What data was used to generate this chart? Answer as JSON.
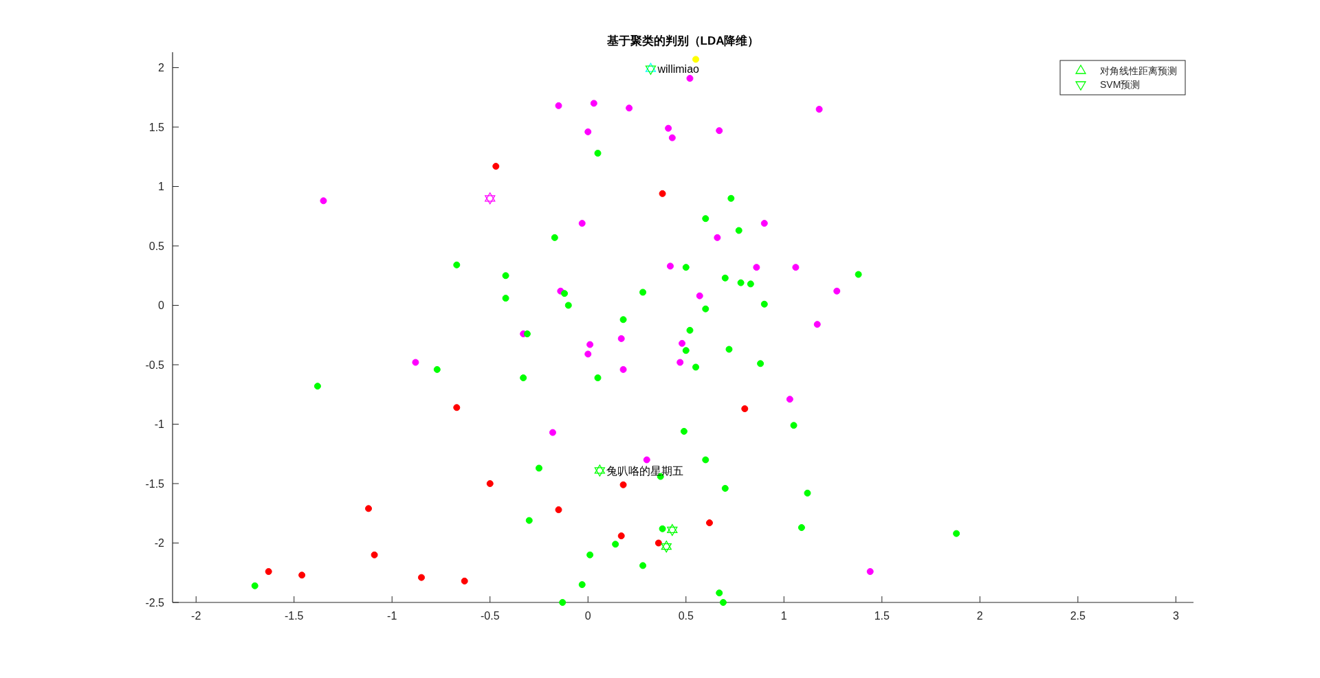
{
  "chart_data": {
    "type": "scatter",
    "title": "基于聚类的判别（LDA降维）",
    "xlim": [
      -2.12,
      3.09
    ],
    "ylim": [
      -2.5,
      2.13
    ],
    "xticks": [
      -2,
      -1.5,
      -1,
      -0.5,
      0,
      0.5,
      1,
      1.5,
      2,
      2.5,
      3
    ],
    "yticks": [
      -2.5,
      -2,
      -1.5,
      -1,
      -0.5,
      0,
      0.5,
      1,
      1.5,
      2
    ],
    "grid": false,
    "legend": "top right",
    "marker": "circle",
    "series": [
      {
        "color": "#ff00ff",
        "x": [
          -0.15,
          0.03,
          0.21,
          0.0,
          0.41,
          0.43,
          0.52,
          1.18,
          0.67,
          -1.35,
          -0.03,
          0.9,
          0.66,
          0.42,
          0.86,
          1.06,
          1.27,
          0.57,
          -0.14,
          1.17,
          -0.33,
          0.01,
          0.17,
          0.0,
          0.48,
          0.47,
          -0.88,
          0.18,
          1.03,
          -0.18,
          0.3,
          1.44
        ],
        "values": [
          1.68,
          1.7,
          1.66,
          1.46,
          1.49,
          1.41,
          1.91,
          1.65,
          1.47,
          0.88,
          0.69,
          0.69,
          0.57,
          0.33,
          0.32,
          0.32,
          0.12,
          0.08,
          0.12,
          -0.16,
          -0.24,
          -0.33,
          -0.28,
          -0.41,
          -0.32,
          -0.48,
          -0.48,
          -0.54,
          -0.79,
          -1.07,
          -1.3,
          -2.24
        ]
      },
      {
        "color": "#ff0000",
        "x": [
          -0.47,
          0.38,
          -0.67,
          0.8,
          -0.5,
          0.18,
          -1.12,
          -0.15,
          0.62,
          0.17,
          0.36,
          -1.09,
          -1.63,
          -1.46,
          -0.85,
          -0.63
        ],
        "values": [
          1.17,
          0.94,
          -0.86,
          -0.87,
          -1.5,
          -1.51,
          -1.71,
          -1.72,
          -1.83,
          -1.94,
          -2.0,
          -2.1,
          -2.24,
          -2.27,
          -2.29,
          -2.32
        ]
      },
      {
        "color": "#ffff00",
        "x": [
          0.55
        ],
        "values": [
          2.07
        ]
      },
      {
        "color": "#00ff00",
        "x": [
          0.05,
          0.73,
          0.6,
          0.77,
          -0.17,
          -0.67,
          0.5,
          -0.42,
          1.38,
          0.7,
          0.78,
          0.83,
          -0.42,
          -0.12,
          0.28,
          -0.1,
          0.9,
          0.18,
          0.6,
          0.52,
          -0.31,
          0.5,
          0.72,
          0.88,
          -0.77,
          0.55,
          -0.33,
          0.05,
          -1.38,
          1.05,
          0.49,
          0.6,
          -0.25,
          0.37,
          0.7,
          1.12,
          -0.3,
          1.09,
          0.38,
          1.88,
          0.14,
          0.01,
          0.28,
          -0.03,
          -1.7,
          0.67,
          -0.13,
          0.69
        ],
        "values": [
          1.28,
          0.9,
          0.73,
          0.63,
          0.57,
          0.34,
          0.32,
          0.25,
          0.26,
          0.23,
          0.19,
          0.18,
          0.06,
          0.1,
          0.11,
          0.0,
          0.01,
          -0.12,
          -0.03,
          -0.21,
          -0.24,
          -0.38,
          -0.37,
          -0.49,
          -0.54,
          -0.52,
          -0.61,
          -0.61,
          -0.68,
          -1.01,
          -1.06,
          -1.3,
          -1.37,
          -1.44,
          -1.54,
          -1.58,
          -1.81,
          -1.87,
          -1.88,
          -1.92,
          -2.01,
          -2.1,
          -2.19,
          -2.35,
          -2.36,
          -2.42,
          -2.5,
          -2.5
        ]
      },
      {
        "name": "对角线性距离预测",
        "marker": "triangle",
        "color": "#00ff00",
        "colors": [
          "#00ffff",
          "#ff00ff",
          "#00ff00",
          "#00ff00",
          "#00ff00"
        ],
        "x": [
          0.32,
          -0.5,
          0.06,
          0.43,
          0.4
        ],
        "values": [
          1.99,
          0.9,
          -1.39,
          -1.89,
          -2.03
        ]
      },
      {
        "name": "SVM预测",
        "marker": "triangle_down",
        "color": "#00ff00",
        "colors": [
          "#00ff00",
          "#ff00ff",
          "#00ff00",
          "#00ff00",
          "#00ff00"
        ],
        "x": [
          0.32,
          -0.5,
          0.06,
          0.43,
          0.4
        ],
        "values": [
          1.99,
          0.9,
          -1.39,
          -1.89,
          -2.03
        ]
      }
    ],
    "annotations": [
      {
        "text": "willimiao",
        "x": 0.32,
        "y": 1.99
      },
      {
        "text": "兔叭咯的星期五",
        "x": 0.06,
        "y": -1.39
      }
    ]
  }
}
